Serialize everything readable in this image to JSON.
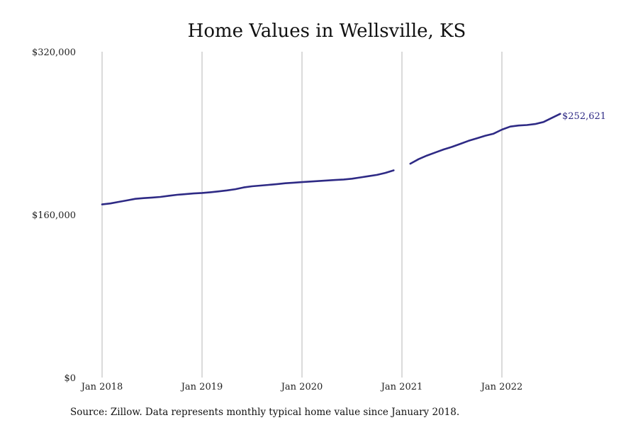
{
  "chart_data": {
    "type": "line",
    "title": "Home Values in Wellsville, KS",
    "xlabel": "",
    "ylabel": "",
    "x_ticks": [
      "Jan 2018",
      "Jan 2019",
      "Jan 2020",
      "Jan 2021",
      "Jan 2022"
    ],
    "y_ticks": [
      "$0",
      "$160,000",
      "$320,000"
    ],
    "y_tick_values": [
      0,
      160000,
      320000
    ],
    "ylim": [
      0,
      320000
    ],
    "xlim": [
      "2018-01",
      "2023-05"
    ],
    "grid": "vertical",
    "legend": "none",
    "series_color": "#2e2a85",
    "end_label": "$252,621",
    "series": [
      {
        "segments": [
          {
            "x": [
              "2018-01",
              "2018-02",
              "2018-03",
              "2018-04",
              "2018-05",
              "2018-06",
              "2018-07",
              "2018-08",
              "2018-09",
              "2018-10",
              "2018-11",
              "2018-12",
              "2019-01",
              "2019-02",
              "2019-03",
              "2019-04",
              "2019-05",
              "2019-06",
              "2019-07",
              "2019-08",
              "2019-09",
              "2019-10",
              "2019-11",
              "2019-12",
              "2020-01",
              "2020-02",
              "2020-03",
              "2020-04",
              "2020-05",
              "2020-06",
              "2020-07",
              "2020-08",
              "2020-09",
              "2020-10",
              "2020-11",
              "2020-12"
            ],
            "y": [
              170000,
              171000,
              172500,
              174000,
              175500,
              176200,
              176800,
              177400,
              178500,
              179500,
              180100,
              180800,
              181300,
              182000,
              182800,
              183800,
              185000,
              186700,
              187800,
              188500,
              189200,
              190000,
              190800,
              191400,
              191900,
              192500,
              193000,
              193500,
              194000,
              194500,
              195300,
              196500,
              197800,
              199000,
              201000,
              203500
            ]
          },
          {
            "x": [
              "2021-02",
              "2021-03",
              "2021-04",
              "2021-05",
              "2021-06",
              "2021-07",
              "2021-08",
              "2021-09",
              "2021-10",
              "2021-11",
              "2021-12",
              "2022-01",
              "2022-02",
              "2022-03",
              "2022-04",
              "2022-05",
              "2022-06",
              "2022-07",
              "2022-08"
            ],
            "y": [
              210000,
              214500,
              218000,
              221000,
              224000,
              226500,
              229500,
              232500,
              235000,
              237500,
              239500,
              243500,
              246500,
              247500,
              248000,
              249000,
              251000,
              255000,
              259000
            ]
          }
        ]
      }
    ]
  },
  "source": "Source: Zillow. Data represents monthly typical home value since January 2018."
}
